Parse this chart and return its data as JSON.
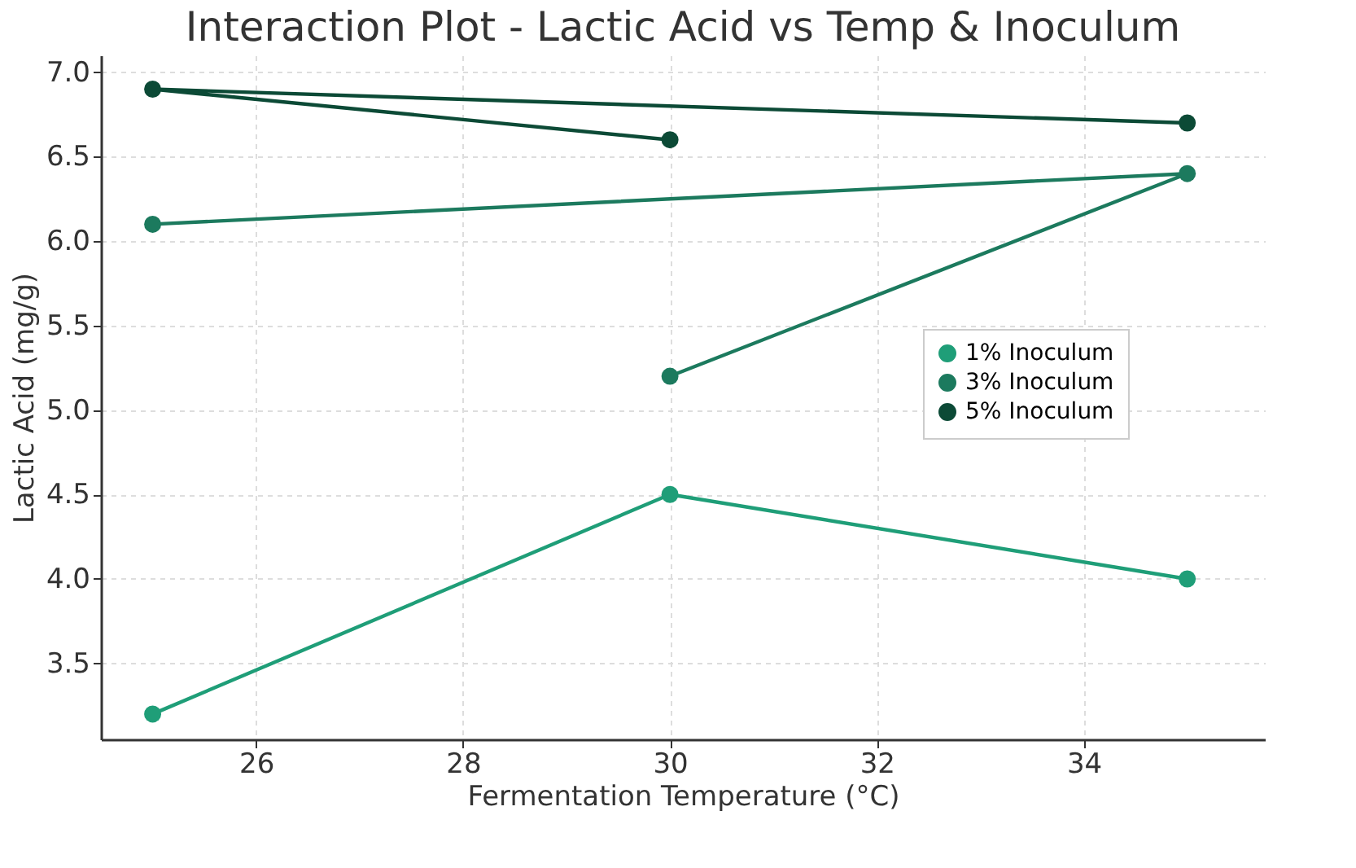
{
  "chart_data": {
    "type": "line",
    "title": "Interaction Plot - Lactic Acid vs Temp & Inoculum",
    "xlabel": "Fermentation Temperature (°C)",
    "ylabel": "Lactic Acid (mg/g)",
    "series": [
      {
        "name": "1% Inoculum",
        "color": "#1f9e78",
        "x": [
          25,
          30,
          35
        ],
        "values": [
          3.2,
          4.5,
          4.0
        ]
      },
      {
        "name": "3% Inoculum",
        "color": "#1c7a5e",
        "x": [
          25,
          35,
          30
        ],
        "values": [
          6.1,
          6.4,
          5.2
        ]
      },
      {
        "name": "5% Inoculum",
        "color": "#0c4a36",
        "x": [
          30,
          25,
          35
        ],
        "values": [
          6.6,
          6.9,
          6.7
        ]
      }
    ],
    "xlim": [
      24.5,
      35.75
    ],
    "xticks": [
      26,
      28,
      30,
      32,
      34
    ],
    "ylim": [
      3.05,
      7.1
    ],
    "yticks": [
      3.5,
      {
        "value": 4,
        "label": "4.0"
      },
      4.5,
      {
        "value": 5,
        "label": "5.0"
      },
      5.5,
      {
        "value": 6,
        "label": "6.0"
      },
      6.5,
      {
        "value": 7,
        "label": "7.0"
      }
    ],
    "grid": true,
    "legend": "right",
    "marker": "circle",
    "line_style": "solid"
  }
}
